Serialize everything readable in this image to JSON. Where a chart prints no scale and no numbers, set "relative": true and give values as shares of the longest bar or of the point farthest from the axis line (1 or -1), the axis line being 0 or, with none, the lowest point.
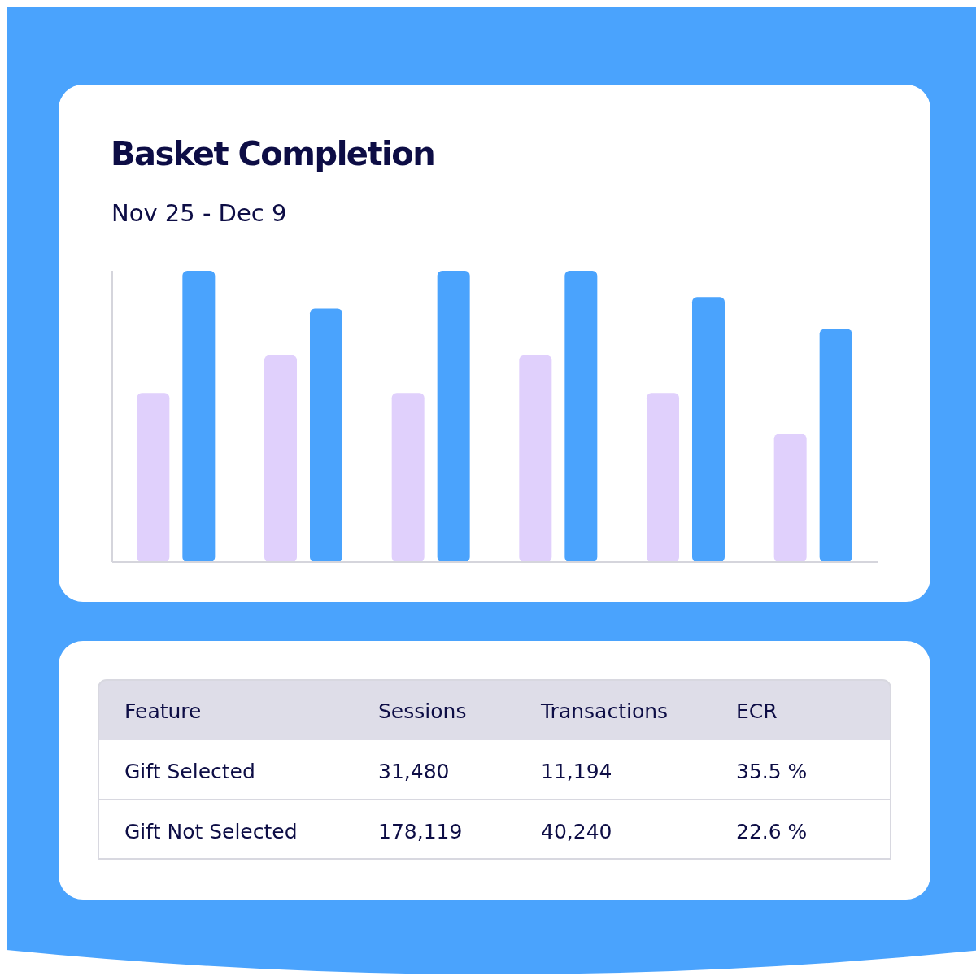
{
  "chart_data": [
    {
      "type": "bar",
      "title": "Basket Completion",
      "subtitle": "Nov 25 - Dec 9",
      "relative": true,
      "categories": [
        null,
        null,
        null,
        null,
        null,
        null
      ],
      "series": [
        {
          "color": "#e0d0fc",
          "values": [
            0.58,
            0.71,
            0.58,
            0.71,
            0.58,
            0.44
          ]
        },
        {
          "color": "#4aa3fd",
          "values": [
            1,
            0.87,
            1,
            1,
            0.91,
            0.8
          ]
        }
      ]
    },
    {
      "type": "other",
      "annotations": [
        "Feature",
        "Sessions",
        "Transactions",
        "ECR",
        "Gift Selected",
        "31,480",
        "11,194",
        "35.5 %",
        "Gift Not Selected",
        "178,119",
        "40,240",
        "22.6 %"
      ]
    }
  ]
}
